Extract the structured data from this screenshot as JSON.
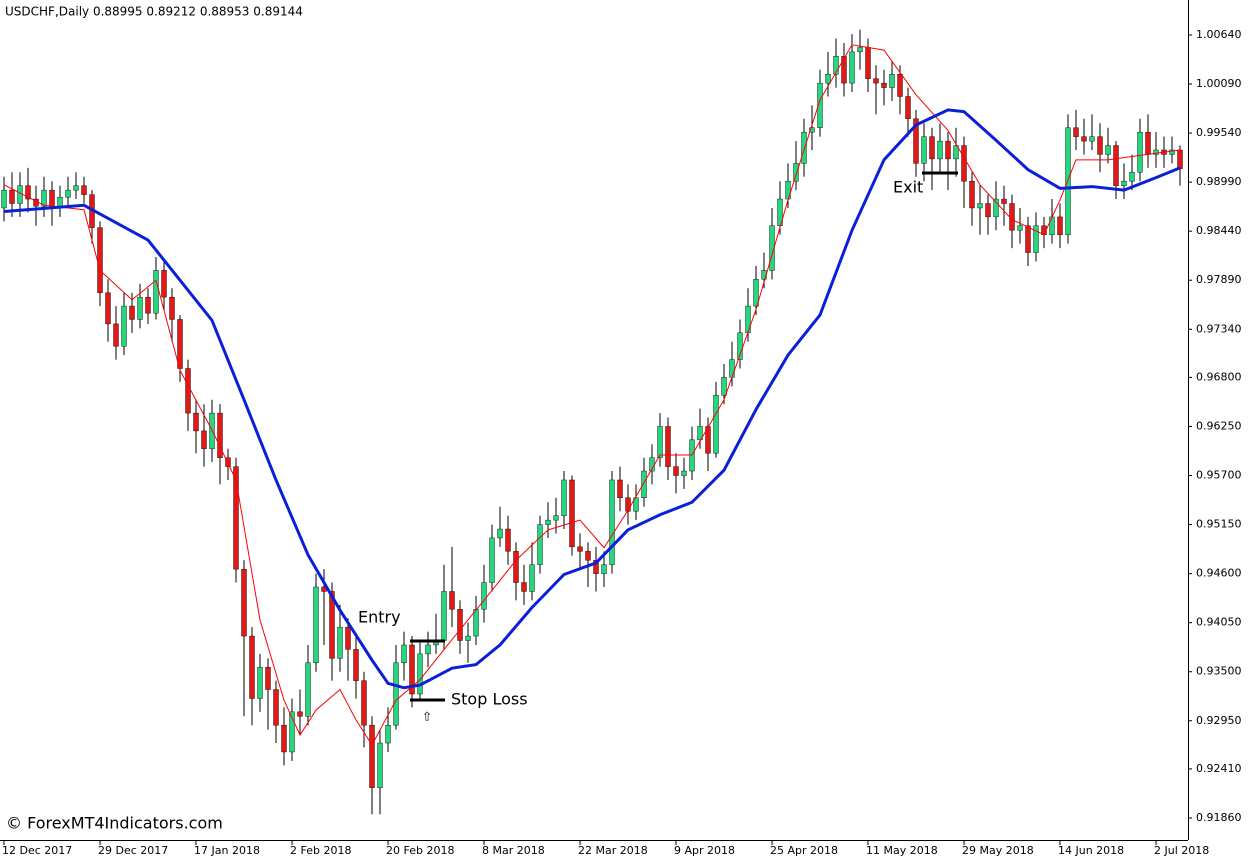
{
  "chart_data": {
    "type": "candlestick",
    "header": "USDCHF,Daily  0.88995 0.89212 0.88953 0.89144",
    "watermark": "© ForexMT4Indicators.com",
    "annotations": [
      "Entry",
      "Stop Loss",
      "Exit",
      "⇧"
    ],
    "up_color": "#29d680",
    "down_color": "#e01919",
    "wick_color": "#000000",
    "categories": [
      "12 Dec 2017",
      null,
      null,
      null,
      null,
      null,
      null,
      null,
      null,
      null,
      null,
      null,
      "29 Dec 2017",
      null,
      null,
      null,
      null,
      null,
      null,
      null,
      null,
      null,
      null,
      null,
      "17 Jan 2018",
      null,
      null,
      null,
      null,
      null,
      null,
      null,
      null,
      null,
      null,
      null,
      "2 Feb 2018",
      null,
      null,
      null,
      null,
      null,
      null,
      null,
      null,
      null,
      null,
      null,
      "20 Feb 2018",
      null,
      null,
      null,
      null,
      null,
      null,
      null,
      null,
      null,
      null,
      null,
      "8 Mar 2018",
      null,
      null,
      null,
      null,
      null,
      null,
      null,
      null,
      null,
      null,
      null,
      "22 Mar 2018",
      null,
      null,
      null,
      null,
      null,
      null,
      null,
      null,
      null,
      null,
      null,
      "9 Apr 2018",
      null,
      null,
      null,
      null,
      null,
      null,
      null,
      null,
      null,
      null,
      null,
      "25 Apr 2018",
      null,
      null,
      null,
      null,
      null,
      null,
      null,
      null,
      null,
      null,
      null,
      "11 May 2018",
      null,
      null,
      null,
      null,
      null,
      null,
      null,
      null,
      null,
      null,
      null,
      "29 May 2018",
      null,
      null,
      null,
      null,
      null,
      null,
      null,
      null,
      null,
      null,
      null,
      "14 Jun 2018",
      null,
      null,
      null,
      null,
      null,
      null,
      null,
      null,
      null,
      null,
      null,
      "2 Jul 2018",
      null,
      null,
      null
    ],
    "open": [
      0.987,
      0.989,
      0.9875,
      0.9895,
      0.988,
      0.9872,
      0.989,
      0.987,
      0.9882,
      0.989,
      0.9895,
      0.9885,
      0.9848,
      0.9775,
      0.974,
      0.9715,
      0.976,
      0.9745,
      0.977,
      0.9752,
      0.98,
      0.977,
      0.9745,
      0.969,
      0.964,
      0.962,
      0.96,
      0.964,
      0.959,
      0.958,
      0.9465,
      0.939,
      0.932,
      0.9355,
      0.933,
      0.929,
      0.926,
      0.9305,
      0.93,
      0.936,
      0.9445,
      0.944,
      0.9365,
      0.94,
      0.9375,
      0.934,
      0.929,
      0.922,
      0.927,
      0.929,
      0.936,
      0.938,
      0.9325,
      0.937,
      0.938,
      0.9385,
      0.944,
      0.942,
      0.9385,
      0.939,
      0.942,
      0.945,
      0.95,
      0.951,
      0.9485,
      0.945,
      0.944,
      0.947,
      0.9515,
      0.952,
      0.9525,
      0.9565,
      0.949,
      0.9485,
      0.9475,
      0.946,
      0.947,
      0.9565,
      0.9545,
      0.953,
      0.9545,
      0.9575,
      0.959,
      0.9625,
      0.958,
      0.957,
      0.9575,
      0.961,
      0.9625,
      0.9595,
      0.966,
      0.968,
      0.97,
      0.973,
      0.976,
      0.979,
      0.98,
      0.985,
      0.988,
      0.99,
      0.992,
      0.9955,
      0.996,
      1.001,
      1.002,
      1.004,
      1.001,
      1.0045,
      1.005,
      1.0015,
      1.001,
      1.0005,
      1.002,
      0.9995,
      0.997,
      0.992,
      0.995,
      0.9925,
      0.9945,
      0.9925,
      0.994,
      0.99,
      0.987,
      0.9875,
      0.986,
      0.988,
      0.9875,
      0.9845,
      0.985,
      0.982,
      0.985,
      0.984,
      0.986,
      0.984,
      0.996,
      0.995,
      0.9945,
      0.995,
      0.993,
      0.994,
      0.9895,
      0.99,
      0.991,
      0.9955,
      0.993,
      0.9935,
      0.993,
      0.9935
    ],
    "high": [
      0.9905,
      0.991,
      0.991,
      0.9915,
      0.9895,
      0.9905,
      0.99,
      0.9895,
      0.9905,
      0.991,
      0.9905,
      0.989,
      0.9855,
      0.979,
      0.976,
      0.9775,
      0.9775,
      0.9785,
      0.978,
      0.9815,
      0.981,
      0.978,
      0.975,
      0.97,
      0.9655,
      0.965,
      0.9655,
      0.965,
      0.96,
      0.959,
      0.9475,
      0.94,
      0.937,
      0.9365,
      0.934,
      0.931,
      0.932,
      0.933,
      0.938,
      0.946,
      0.9465,
      0.945,
      0.9425,
      0.941,
      0.939,
      0.935,
      0.93,
      0.9285,
      0.931,
      0.938,
      0.9395,
      0.939,
      0.9385,
      0.9395,
      0.9415,
      0.947,
      0.949,
      0.943,
      0.9405,
      0.9435,
      0.947,
      0.9515,
      0.9535,
      0.9525,
      0.9495,
      0.947,
      0.9495,
      0.9525,
      0.954,
      0.9545,
      0.9575,
      0.957,
      0.9505,
      0.9495,
      0.949,
      0.9485,
      0.9575,
      0.958,
      0.956,
      0.956,
      0.959,
      0.9605,
      0.964,
      0.9635,
      0.9595,
      0.959,
      0.9625,
      0.9645,
      0.9635,
      0.9675,
      0.9695,
      0.972,
      0.9745,
      0.978,
      0.9805,
      0.982,
      0.987,
      0.99,
      0.992,
      0.9945,
      0.997,
      0.9985,
      1.0025,
      1.0045,
      1.006,
      1.0055,
      1.0065,
      1.007,
      1.006,
      1.003,
      1.0025,
      1.0035,
      1.003,
      1.0005,
      0.998,
      0.9965,
      0.996,
      0.9965,
      0.9955,
      0.996,
      0.995,
      0.991,
      0.9895,
      0.9885,
      0.99,
      0.9895,
      0.9885,
      0.987,
      0.986,
      0.9865,
      0.986,
      0.988,
      0.9875,
      0.9975,
      0.998,
      0.997,
      0.9975,
      0.9965,
      0.996,
      0.9945,
      0.992,
      0.993,
      0.997,
      0.9975,
      0.9955,
      0.995,
      0.995,
      0.994
    ],
    "low": [
      0.9855,
      0.986,
      0.986,
      0.9865,
      0.985,
      0.986,
      0.985,
      0.986,
      0.987,
      0.988,
      0.9875,
      0.983,
      0.976,
      0.972,
      0.97,
      0.9705,
      0.973,
      0.9735,
      0.974,
      0.9745,
      0.9755,
      0.972,
      0.9675,
      0.962,
      0.9595,
      0.958,
      0.9585,
      0.956,
      0.9565,
      0.945,
      0.93,
      0.929,
      0.9305,
      0.9285,
      0.927,
      0.9245,
      0.925,
      0.928,
      0.929,
      0.935,
      0.938,
      0.934,
      0.935,
      0.934,
      0.932,
      0.9265,
      0.919,
      0.919,
      0.926,
      0.9285,
      0.934,
      0.931,
      0.932,
      0.9355,
      0.937,
      0.9375,
      0.94,
      0.937,
      0.936,
      0.938,
      0.9405,
      0.944,
      0.949,
      0.947,
      0.943,
      0.9425,
      0.943,
      0.946,
      0.95,
      0.9505,
      0.951,
      0.948,
      0.9465,
      0.9445,
      0.944,
      0.9445,
      0.946,
      0.953,
      0.9515,
      0.952,
      0.9535,
      0.956,
      0.958,
      0.9565,
      0.955,
      0.9555,
      0.9565,
      0.96,
      0.9575,
      0.959,
      0.965,
      0.967,
      0.969,
      0.972,
      0.975,
      0.978,
      0.979,
      0.984,
      0.987,
      0.989,
      0.9905,
      0.9935,
      0.995,
      0.9995,
      1.0005,
      0.9995,
      1.0,
      1.0025,
      1.0,
      0.9975,
      0.9985,
      0.999,
      0.9975,
      0.995,
      0.9905,
      0.99,
      0.989,
      0.991,
      0.989,
      0.9905,
      0.987,
      0.985,
      0.984,
      0.984,
      0.9845,
      0.985,
      0.9825,
      0.983,
      0.9805,
      0.981,
      0.9825,
      0.983,
      0.9825,
      0.983,
      0.9935,
      0.993,
      0.9935,
      0.991,
      0.992,
      0.988,
      0.988,
      0.989,
      0.99,
      0.9915,
      0.9915,
      0.9915,
      0.992,
      0.9895
    ],
    "close": [
      0.989,
      0.9875,
      0.9895,
      0.988,
      0.9872,
      0.989,
      0.987,
      0.9882,
      0.989,
      0.9895,
      0.9885,
      0.9848,
      0.9775,
      0.974,
      0.9715,
      0.976,
      0.9745,
      0.977,
      0.9752,
      0.98,
      0.977,
      0.9745,
      0.969,
      0.964,
      0.962,
      0.96,
      0.964,
      0.959,
      0.958,
      0.9465,
      0.939,
      0.932,
      0.9355,
      0.933,
      0.929,
      0.926,
      0.9305,
      0.93,
      0.936,
      0.9445,
      0.944,
      0.9365,
      0.94,
      0.9375,
      0.934,
      0.929,
      0.922,
      0.927,
      0.929,
      0.936,
      0.938,
      0.9325,
      0.937,
      0.938,
      0.9385,
      0.944,
      0.942,
      0.9385,
      0.939,
      0.942,
      0.945,
      0.95,
      0.951,
      0.9485,
      0.945,
      0.944,
      0.947,
      0.9515,
      0.952,
      0.9525,
      0.9565,
      0.949,
      0.9485,
      0.9475,
      0.946,
      0.947,
      0.9565,
      0.9545,
      0.953,
      0.9545,
      0.9575,
      0.959,
      0.9625,
      0.958,
      0.957,
      0.9575,
      0.961,
      0.9625,
      0.9595,
      0.966,
      0.968,
      0.97,
      0.973,
      0.976,
      0.979,
      0.98,
      0.985,
      0.988,
      0.99,
      0.992,
      0.9955,
      0.996,
      1.001,
      1.002,
      1.004,
      1.001,
      1.0045,
      1.005,
      1.0015,
      1.001,
      1.0005,
      1.002,
      0.9995,
      0.997,
      0.992,
      0.995,
      0.9925,
      0.9945,
      0.9925,
      0.994,
      0.99,
      0.987,
      0.9875,
      0.986,
      0.988,
      0.9875,
      0.9845,
      0.985,
      0.982,
      0.985,
      0.984,
      0.986,
      0.984,
      0.996,
      0.995,
      0.9945,
      0.995,
      0.993,
      0.994,
      0.9895,
      0.99,
      0.991,
      0.9955,
      0.993,
      0.9935,
      0.993,
      0.9935,
      0.9914
    ],
    "series": [
      {
        "color": "#ff0000",
        "x": [
          0,
          5,
          10,
          12,
          16,
          19,
          22,
          26,
          29,
          32,
          35,
          37,
          39,
          42,
          44,
          46,
          49,
          52,
          56,
          60,
          64,
          68,
          72,
          75,
          78,
          82,
          86,
          90,
          94,
          98,
          102,
          106,
          110,
          114,
          118,
          122,
          126,
          130,
          132,
          134,
          138,
          142,
          147
        ],
        "values": [
          0.9896,
          0.9873,
          0.9868,
          0.98,
          0.9767,
          0.9789,
          0.9688,
          0.9621,
          0.9565,
          0.9408,
          0.9318,
          0.9279,
          0.9307,
          0.933,
          0.9296,
          0.9268,
          0.9318,
          0.9341,
          0.9386,
          0.943,
          0.9475,
          0.9509,
          0.952,
          0.9489,
          0.9531,
          0.9593,
          0.9593,
          0.9655,
          0.9756,
          0.9879,
          0.9991,
          1.0053,
          1.0047,
          0.9997,
          0.9957,
          0.9896,
          0.9857,
          0.984,
          0.9879,
          0.9924,
          0.9924,
          0.9929,
          0.9935
        ]
      },
      {
        "color": "#0a1fd6",
        "x": [
          0,
          10,
          18,
          22,
          26,
          30,
          34,
          38,
          42,
          46,
          48,
          50,
          52,
          56,
          59,
          62,
          66,
          70,
          74,
          78,
          82,
          86,
          90,
          94,
          98,
          102,
          106,
          110,
          114,
          118,
          120,
          124,
          128,
          132,
          136,
          140,
          144,
          147
        ],
        "values": [
          0.9866,
          0.9873,
          0.9834,
          0.9789,
          0.9744,
          0.9655,
          0.9565,
          0.9481,
          0.9419,
          0.9363,
          0.9337,
          0.9332,
          0.9335,
          0.9354,
          0.9358,
          0.938,
          0.9422,
          0.9459,
          0.9472,
          0.9509,
          0.9526,
          0.954,
          0.9576,
          0.9644,
          0.9705,
          0.975,
          0.9845,
          0.9924,
          0.9963,
          0.998,
          0.9978,
          0.9946,
          0.9913,
          0.9892,
          0.9894,
          0.989,
          0.9904,
          0.9915
        ]
      }
    ],
    "ylim": [
      0.91613,
      1.01032
    ],
    "yticks": [
      {
        "value": 1.0064,
        "label": "1.00640"
      },
      {
        "value": 1.0009,
        "label": "1.00090"
      },
      {
        "value": 0.9954,
        "label": "0.99540"
      },
      {
        "value": 0.9899,
        "label": "0.98990"
      },
      {
        "value": 0.9844,
        "label": "0.98440"
      },
      {
        "value": 0.9789,
        "label": "0.97890"
      },
      {
        "value": 0.9734,
        "label": "0.97340"
      },
      {
        "value": 0.968,
        "label": "0.96800"
      },
      {
        "value": 0.9625,
        "label": "0.96250"
      },
      {
        "value": 0.957,
        "label": "0.95700"
      },
      {
        "value": 0.9515,
        "label": "0.95150"
      },
      {
        "value": 0.946,
        "label": "0.94600"
      },
      {
        "value": 0.9405,
        "label": "0.94050"
      },
      {
        "value": 0.935,
        "label": "0.93500"
      },
      {
        "value": 0.9295,
        "label": "0.92950"
      },
      {
        "value": 0.9241,
        "label": "0.92410"
      },
      {
        "value": 0.9186,
        "label": "0.91860"
      }
    ],
    "grid": false
  }
}
